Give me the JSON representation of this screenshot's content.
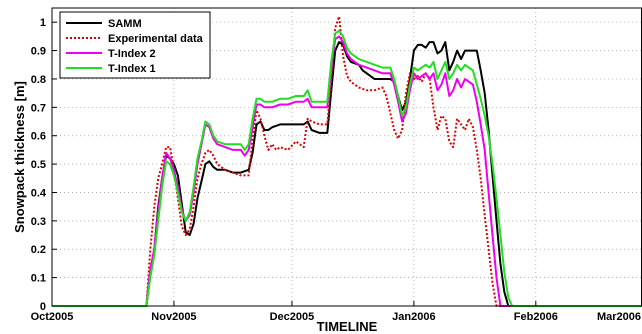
{
  "chart_data": {
    "type": "line",
    "title": "",
    "xlabel": "TIMELINE",
    "ylabel": "Snowpack thickness [m]",
    "xlim": [
      0,
      150
    ],
    "ylim": [
      0,
      1.05
    ],
    "x_ticks": [
      {
        "x": 0,
        "label": "Oct2005"
      },
      {
        "x": 31,
        "label": "Nov2005"
      },
      {
        "x": 61,
        "label": "Dec2005"
      },
      {
        "x": 92,
        "label": "Jan2006"
      },
      {
        "x": 123,
        "label": "Feb2006"
      },
      {
        "x": 151,
        "label": "Mar2006"
      }
    ],
    "y_ticks": [
      "0",
      "0.1",
      "0.2",
      "0.3",
      "0.4",
      "0.5",
      "0.6",
      "0.7",
      "0.8",
      "0.9",
      "1"
    ],
    "y_tick_values": [
      0,
      0.1,
      0.2,
      0.3,
      0.4,
      0.5,
      0.6,
      0.7,
      0.8,
      0.9,
      1.0
    ],
    "grid": true,
    "legend_position": "top-left",
    "series": [
      {
        "name": "SAMM",
        "color": "#000000",
        "dash": "solid",
        "points": [
          [
            0,
            0
          ],
          [
            24,
            0
          ],
          [
            25,
            0.12
          ],
          [
            26,
            0.2
          ],
          [
            27,
            0.35
          ],
          [
            28,
            0.45
          ],
          [
            29,
            0.53
          ],
          [
            30,
            0.52
          ],
          [
            31,
            0.5
          ],
          [
            32,
            0.46
          ],
          [
            33,
            0.36
          ],
          [
            34,
            0.26
          ],
          [
            35,
            0.25
          ],
          [
            36,
            0.29
          ],
          [
            37,
            0.38
          ],
          [
            38,
            0.44
          ],
          [
            39,
            0.5
          ],
          [
            40,
            0.51
          ],
          [
            41,
            0.49
          ],
          [
            42,
            0.48
          ],
          [
            44,
            0.48
          ],
          [
            46,
            0.47
          ],
          [
            48,
            0.47
          ],
          [
            50,
            0.48
          ],
          [
            51,
            0.54
          ],
          [
            52,
            0.64
          ],
          [
            53,
            0.65
          ],
          [
            54,
            0.62
          ],
          [
            55,
            0.62
          ],
          [
            56,
            0.63
          ],
          [
            58,
            0.64
          ],
          [
            60,
            0.64
          ],
          [
            62,
            0.64
          ],
          [
            64,
            0.64
          ],
          [
            65,
            0.65
          ],
          [
            66,
            0.62
          ],
          [
            68,
            0.61
          ],
          [
            70,
            0.61
          ],
          [
            71,
            0.76
          ],
          [
            72,
            0.9
          ],
          [
            73,
            0.93
          ],
          [
            74,
            0.92
          ],
          [
            75,
            0.88
          ],
          [
            76,
            0.86
          ],
          [
            78,
            0.85
          ],
          [
            79,
            0.83
          ],
          [
            80,
            0.82
          ],
          [
            82,
            0.8
          ],
          [
            84,
            0.8
          ],
          [
            86,
            0.8
          ],
          [
            87,
            0.79
          ],
          [
            88,
            0.74
          ],
          [
            89,
            0.69
          ],
          [
            90,
            0.72
          ],
          [
            91,
            0.8
          ],
          [
            92,
            0.9
          ],
          [
            93,
            0.92
          ],
          [
            94,
            0.92
          ],
          [
            95,
            0.91
          ],
          [
            96,
            0.93
          ],
          [
            97,
            0.93
          ],
          [
            98,
            0.89
          ],
          [
            99,
            0.9
          ],
          [
            100,
            0.93
          ],
          [
            101,
            0.83
          ],
          [
            102,
            0.86
          ],
          [
            103,
            0.9
          ],
          [
            104,
            0.87
          ],
          [
            105,
            0.9
          ],
          [
            106,
            0.9
          ],
          [
            108,
            0.9
          ],
          [
            109,
            0.83
          ],
          [
            110,
            0.75
          ],
          [
            111,
            0.62
          ],
          [
            112,
            0.46
          ],
          [
            113,
            0.3
          ],
          [
            114,
            0.15
          ],
          [
            115,
            0.05
          ],
          [
            116,
            0
          ],
          [
            150,
            0
          ]
        ]
      },
      {
        "name": "Experimental data",
        "color": "#dd0000",
        "dash": "dotted",
        "points": [
          [
            0,
            0
          ],
          [
            24,
            0
          ],
          [
            25,
            0.2
          ],
          [
            26,
            0.35
          ],
          [
            27,
            0.45
          ],
          [
            28,
            0.5
          ],
          [
            29,
            0.56
          ],
          [
            30,
            0.56
          ],
          [
            31,
            0.48
          ],
          [
            32,
            0.38
          ],
          [
            33,
            0.28
          ],
          [
            34,
            0.25
          ],
          [
            35,
            0.27
          ],
          [
            36,
            0.35
          ],
          [
            37,
            0.45
          ],
          [
            38,
            0.5
          ],
          [
            39,
            0.54
          ],
          [
            40,
            0.55
          ],
          [
            41,
            0.53
          ],
          [
            42,
            0.5
          ],
          [
            44,
            0.48
          ],
          [
            46,
            0.47
          ],
          [
            48,
            0.46
          ],
          [
            50,
            0.46
          ],
          [
            51,
            0.59
          ],
          [
            52,
            0.69
          ],
          [
            53,
            0.66
          ],
          [
            54,
            0.6
          ],
          [
            55,
            0.55
          ],
          [
            56,
            0.57
          ],
          [
            57,
            0.55
          ],
          [
            58,
            0.56
          ],
          [
            60,
            0.55
          ],
          [
            62,
            0.58
          ],
          [
            64,
            0.56
          ],
          [
            65,
            0.66
          ],
          [
            66,
            0.65
          ],
          [
            68,
            0.64
          ],
          [
            70,
            0.64
          ],
          [
            71,
            0.8
          ],
          [
            72,
            0.98
          ],
          [
            73,
            1.02
          ],
          [
            74,
            0.88
          ],
          [
            75,
            0.81
          ],
          [
            76,
            0.79
          ],
          [
            78,
            0.77
          ],
          [
            80,
            0.76
          ],
          [
            82,
            0.76
          ],
          [
            84,
            0.77
          ],
          [
            85,
            0.74
          ],
          [
            86,
            0.68
          ],
          [
            87,
            0.62
          ],
          [
            88,
            0.59
          ],
          [
            89,
            0.62
          ],
          [
            90,
            0.75
          ],
          [
            91,
            0.82
          ],
          [
            92,
            0.8
          ],
          [
            93,
            0.81
          ],
          [
            94,
            0.79
          ],
          [
            95,
            0.82
          ],
          [
            96,
            0.8
          ],
          [
            97,
            0.7
          ],
          [
            98,
            0.62
          ],
          [
            99,
            0.67
          ],
          [
            100,
            0.66
          ],
          [
            101,
            0.58
          ],
          [
            102,
            0.56
          ],
          [
            103,
            0.66
          ],
          [
            104,
            0.64
          ],
          [
            105,
            0.62
          ],
          [
            106,
            0.66
          ],
          [
            107,
            0.63
          ],
          [
            108,
            0.55
          ],
          [
            109,
            0.45
          ],
          [
            110,
            0.32
          ],
          [
            111,
            0.2
          ],
          [
            112,
            0.08
          ],
          [
            113,
            0
          ],
          [
            150,
            0
          ]
        ]
      },
      {
        "name": "T-Index 2",
        "color": "#ee00ee",
        "dash": "solid",
        "points": [
          [
            0,
            0
          ],
          [
            24,
            0
          ],
          [
            25,
            0.13
          ],
          [
            26,
            0.2
          ],
          [
            27,
            0.33
          ],
          [
            28,
            0.45
          ],
          [
            29,
            0.54
          ],
          [
            30,
            0.52
          ],
          [
            31,
            0.48
          ],
          [
            32,
            0.42
          ],
          [
            33,
            0.34
          ],
          [
            34,
            0.3
          ],
          [
            35,
            0.32
          ],
          [
            36,
            0.4
          ],
          [
            37,
            0.5
          ],
          [
            38,
            0.57
          ],
          [
            39,
            0.64
          ],
          [
            40,
            0.63
          ],
          [
            41,
            0.59
          ],
          [
            42,
            0.57
          ],
          [
            44,
            0.56
          ],
          [
            46,
            0.55
          ],
          [
            48,
            0.55
          ],
          [
            49,
            0.53
          ],
          [
            50,
            0.55
          ],
          [
            51,
            0.63
          ],
          [
            52,
            0.71
          ],
          [
            53,
            0.71
          ],
          [
            54,
            0.7
          ],
          [
            56,
            0.7
          ],
          [
            58,
            0.71
          ],
          [
            60,
            0.71
          ],
          [
            62,
            0.72
          ],
          [
            64,
            0.72
          ],
          [
            65,
            0.73
          ],
          [
            66,
            0.7
          ],
          [
            68,
            0.7
          ],
          [
            70,
            0.7
          ],
          [
            71,
            0.84
          ],
          [
            72,
            0.94
          ],
          [
            73,
            0.95
          ],
          [
            74,
            0.93
          ],
          [
            75,
            0.89
          ],
          [
            76,
            0.87
          ],
          [
            78,
            0.85
          ],
          [
            80,
            0.84
          ],
          [
            82,
            0.83
          ],
          [
            84,
            0.82
          ],
          [
            86,
            0.82
          ],
          [
            87,
            0.78
          ],
          [
            88,
            0.72
          ],
          [
            89,
            0.65
          ],
          [
            90,
            0.68
          ],
          [
            91,
            0.76
          ],
          [
            92,
            0.82
          ],
          [
            93,
            0.8
          ],
          [
            94,
            0.81
          ],
          [
            95,
            0.82
          ],
          [
            96,
            0.8
          ],
          [
            97,
            0.82
          ],
          [
            98,
            0.76
          ],
          [
            99,
            0.78
          ],
          [
            100,
            0.82
          ],
          [
            101,
            0.74
          ],
          [
            102,
            0.76
          ],
          [
            103,
            0.8
          ],
          [
            104,
            0.77
          ],
          [
            105,
            0.8
          ],
          [
            106,
            0.79
          ],
          [
            107,
            0.78
          ],
          [
            108,
            0.72
          ],
          [
            109,
            0.64
          ],
          [
            110,
            0.55
          ],
          [
            111,
            0.4
          ],
          [
            112,
            0.25
          ],
          [
            113,
            0.1
          ],
          [
            114,
            0
          ],
          [
            150,
            0
          ]
        ]
      },
      {
        "name": "T-Index 1",
        "color": "#22dd22",
        "dash": "solid",
        "points": [
          [
            0,
            0
          ],
          [
            24,
            0
          ],
          [
            25,
            0.1
          ],
          [
            26,
            0.18
          ],
          [
            27,
            0.3
          ],
          [
            28,
            0.42
          ],
          [
            29,
            0.51
          ],
          [
            30,
            0.5
          ],
          [
            31,
            0.46
          ],
          [
            32,
            0.4
          ],
          [
            33,
            0.33
          ],
          [
            34,
            0.3
          ],
          [
            35,
            0.33
          ],
          [
            36,
            0.42
          ],
          [
            37,
            0.52
          ],
          [
            38,
            0.58
          ],
          [
            39,
            0.65
          ],
          [
            40,
            0.64
          ],
          [
            41,
            0.6
          ],
          [
            42,
            0.58
          ],
          [
            44,
            0.57
          ],
          [
            46,
            0.57
          ],
          [
            48,
            0.57
          ],
          [
            49,
            0.55
          ],
          [
            50,
            0.57
          ],
          [
            51,
            0.66
          ],
          [
            52,
            0.73
          ],
          [
            53,
            0.73
          ],
          [
            54,
            0.72
          ],
          [
            56,
            0.72
          ],
          [
            58,
            0.73
          ],
          [
            60,
            0.73
          ],
          [
            62,
            0.74
          ],
          [
            64,
            0.74
          ],
          [
            65,
            0.76
          ],
          [
            66,
            0.72
          ],
          [
            68,
            0.72
          ],
          [
            70,
            0.72
          ],
          [
            71,
            0.86
          ],
          [
            72,
            0.96
          ],
          [
            73,
            0.97
          ],
          [
            74,
            0.95
          ],
          [
            75,
            0.91
          ],
          [
            76,
            0.89
          ],
          [
            78,
            0.87
          ],
          [
            80,
            0.86
          ],
          [
            82,
            0.85
          ],
          [
            84,
            0.84
          ],
          [
            86,
            0.84
          ],
          [
            87,
            0.8
          ],
          [
            88,
            0.74
          ],
          [
            89,
            0.67
          ],
          [
            90,
            0.7
          ],
          [
            91,
            0.78
          ],
          [
            92,
            0.84
          ],
          [
            93,
            0.83
          ],
          [
            94,
            0.84
          ],
          [
            95,
            0.85
          ],
          [
            96,
            0.84
          ],
          [
            97,
            0.86
          ],
          [
            98,
            0.8
          ],
          [
            99,
            0.83
          ],
          [
            100,
            0.86
          ],
          [
            101,
            0.8
          ],
          [
            102,
            0.82
          ],
          [
            103,
            0.85
          ],
          [
            104,
            0.83
          ],
          [
            105,
            0.85
          ],
          [
            106,
            0.84
          ],
          [
            107,
            0.83
          ],
          [
            108,
            0.78
          ],
          [
            109,
            0.73
          ],
          [
            110,
            0.67
          ],
          [
            111,
            0.6
          ],
          [
            112,
            0.5
          ],
          [
            113,
            0.38
          ],
          [
            114,
            0.25
          ],
          [
            115,
            0.12
          ],
          [
            116,
            0.03
          ],
          [
            117,
            0
          ],
          [
            150,
            0
          ]
        ]
      }
    ]
  }
}
